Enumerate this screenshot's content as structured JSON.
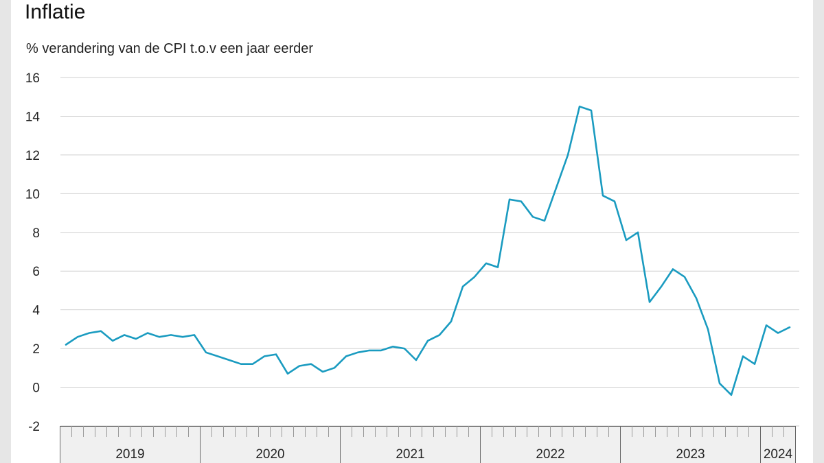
{
  "chart_data": {
    "type": "line",
    "title": "Inflatie",
    "subtitle": "% verandering van de CPI t.o.v een jaar eerder",
    "ylim": [
      -2,
      16
    ],
    "y_ticks": [
      "16",
      "14",
      "12",
      "10",
      "8",
      "6",
      "4",
      "2",
      "0",
      "-2"
    ],
    "y_tick_values": [
      16,
      14,
      12,
      10,
      8,
      6,
      4,
      2,
      0,
      -2
    ],
    "year_labels": [
      "2019",
      "2020",
      "2021",
      "2022",
      "2023",
      "2024"
    ],
    "x_start": "2019-01",
    "x_end": "2024-03",
    "grid": true,
    "colors": {
      "line": "#1a9bc0",
      "grid": "#cfcfcf",
      "axis_band": "#f0f0f0"
    },
    "series": [
      {
        "x": [
          "2019-01",
          "2019-02",
          "2019-03",
          "2019-04",
          "2019-05",
          "2019-06",
          "2019-07",
          "2019-08",
          "2019-09",
          "2019-10",
          "2019-11",
          "2019-12",
          "2020-01",
          "2020-02",
          "2020-03",
          "2020-04",
          "2020-05",
          "2020-06",
          "2020-07",
          "2020-08",
          "2020-09",
          "2020-10",
          "2020-11",
          "2020-12",
          "2021-01",
          "2021-02",
          "2021-03",
          "2021-04",
          "2021-05",
          "2021-06",
          "2021-07",
          "2021-08",
          "2021-09",
          "2021-10",
          "2021-11",
          "2021-12",
          "2022-01",
          "2022-02",
          "2022-03",
          "2022-04",
          "2022-05",
          "2022-06",
          "2022-07",
          "2022-08",
          "2022-09",
          "2022-10",
          "2022-11",
          "2022-12",
          "2023-01",
          "2023-02",
          "2023-03",
          "2023-04",
          "2023-05",
          "2023-06",
          "2023-07",
          "2023-08",
          "2023-09",
          "2023-10",
          "2023-11",
          "2023-12",
          "2024-01",
          "2024-02",
          "2024-03"
        ],
        "values": [
          2.2,
          2.6,
          2.8,
          2.9,
          2.4,
          2.7,
          2.5,
          2.8,
          2.6,
          2.7,
          2.6,
          2.7,
          1.8,
          1.6,
          1.4,
          1.2,
          1.2,
          1.6,
          1.7,
          0.7,
          1.1,
          1.2,
          0.8,
          1.0,
          1.6,
          1.8,
          1.9,
          1.9,
          2.1,
          2.0,
          1.4,
          2.4,
          2.7,
          3.4,
          5.2,
          5.7,
          6.4,
          6.2,
          9.7,
          9.6,
          8.8,
          8.6,
          10.3,
          12.0,
          14.5,
          14.3,
          9.9,
          9.6,
          7.6,
          8.0,
          4.4,
          5.2,
          6.1,
          5.7,
          4.6,
          3.0,
          0.2,
          -0.4,
          1.6,
          1.2,
          3.2,
          2.8,
          3.1
        ]
      }
    ]
  }
}
